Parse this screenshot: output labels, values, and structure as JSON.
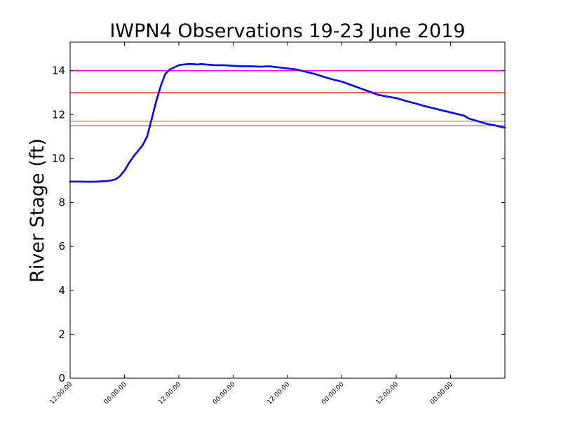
{
  "chart_data": {
    "type": "line",
    "title": "IWPN4 Observations 19-23 June 2019",
    "xlabel": "",
    "ylabel": "River Stage (ft)",
    "xlim": [
      0,
      96
    ],
    "ylim": [
      0,
      15.3
    ],
    "yticks": [
      0,
      2,
      4,
      6,
      8,
      10,
      12,
      14
    ],
    "xticks": [
      {
        "x": 0,
        "label": "12:00:00"
      },
      {
        "x": 12,
        "label": "00:00:00"
      },
      {
        "x": 24,
        "label": "12:00:00"
      },
      {
        "x": 36,
        "label": "00:00:00"
      },
      {
        "x": 48,
        "label": "12:00:00"
      },
      {
        "x": 60,
        "label": "00:00:00"
      },
      {
        "x": 72,
        "label": "12:00:00"
      },
      {
        "x": 84,
        "label": "00:00:00"
      }
    ],
    "grid": false,
    "legend": "none",
    "thresholds": [
      {
        "value": 14.0,
        "color": "#ff00ff"
      },
      {
        "value": 13.0,
        "color": "#ff0000"
      },
      {
        "value": 11.7,
        "color": "#ff8c00"
      },
      {
        "value": 11.5,
        "color": "#b8860b"
      }
    ],
    "series": [
      {
        "color": "#0000ff",
        "x": [
          0,
          2,
          4,
          6,
          8,
          9,
          10,
          11,
          12,
          13,
          14,
          15,
          16,
          17,
          18,
          19,
          20,
          21,
          22,
          23,
          24,
          25,
          26,
          27,
          28,
          29,
          30,
          32,
          34,
          36,
          38,
          40,
          42,
          44,
          46,
          48,
          50,
          52,
          54,
          56,
          58,
          60,
          62,
          64,
          66,
          68,
          70,
          72,
          74,
          76,
          78,
          80,
          82,
          84,
          87,
          88,
          90,
          92,
          94,
          96
        ],
        "y": [
          8.95,
          8.95,
          8.94,
          8.95,
          8.98,
          9.0,
          9.05,
          9.2,
          9.45,
          9.8,
          10.1,
          10.35,
          10.6,
          11.0,
          11.8,
          12.6,
          13.3,
          13.85,
          14.05,
          14.15,
          14.25,
          14.28,
          14.3,
          14.3,
          14.28,
          14.3,
          14.28,
          14.25,
          14.25,
          14.22,
          14.2,
          14.2,
          14.18,
          14.2,
          14.15,
          14.1,
          14.05,
          13.95,
          13.85,
          13.72,
          13.6,
          13.5,
          13.35,
          13.2,
          13.05,
          12.9,
          12.82,
          12.75,
          12.63,
          12.52,
          12.4,
          12.3,
          12.2,
          12.1,
          11.95,
          11.82,
          11.7,
          11.58,
          11.5,
          11.4
        ]
      }
    ]
  }
}
